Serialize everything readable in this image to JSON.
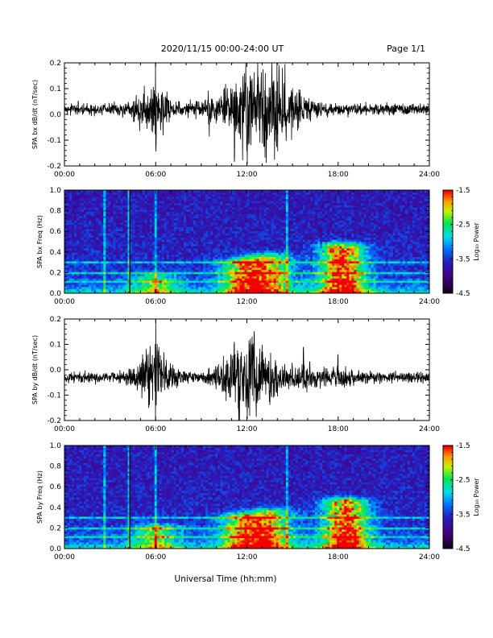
{
  "header": {
    "date_range": "2020/11/15  00:00-24:00 UT",
    "page": "Page 1/1"
  },
  "xaxis": {
    "title": "Universal Time (hh:mm)",
    "tick_labels": [
      "00:00",
      "06:00",
      "12:00",
      "18:00",
      "24:00"
    ]
  },
  "chart_data": [
    {
      "type": "line",
      "ylabel": "SPA bx dB/dt (nT/sec)",
      "xlim": [
        0,
        24
      ],
      "ylim": [
        -0.2,
        0.2
      ],
      "ytick_labels": [
        "-0.2",
        "-0.1",
        "0.0",
        "0.1",
        "0.2"
      ],
      "baseline": 0.02,
      "noise_amplitude": 0.02,
      "events": [
        {
          "time": 5.5,
          "amp": 0.05
        },
        {
          "time": 6.0,
          "amp": 0.17
        },
        {
          "time": 9.5,
          "amp": 0.05
        },
        {
          "time": 11.2,
          "amp": 0.09
        },
        {
          "time": 11.7,
          "amp": 0.17
        },
        {
          "time": 12.7,
          "amp": 0.2
        },
        {
          "time": 13.5,
          "amp": 0.12
        },
        {
          "time": 14.0,
          "amp": 0.14
        },
        {
          "time": 14.5,
          "amp": 0.09
        },
        {
          "time": 15.5,
          "amp": 0.06
        }
      ]
    },
    {
      "type": "heatmap",
      "ylabel": "SPA bx Freq (Hz)",
      "xlim": [
        0,
        24
      ],
      "ylim": [
        0,
        1.0
      ],
      "ytick_labels": [
        "0.0",
        "0.2",
        "0.4",
        "0.6",
        "0.8",
        "1.0"
      ],
      "colorbar": {
        "label": "Log₁₀ Power",
        "range": [
          -4.5,
          -1.5
        ],
        "tick_labels": [
          "-1.5",
          "-2.5",
          "-3.5",
          "-4.5"
        ]
      },
      "bands_hz": [
        0.3,
        0.2,
        0.12
      ],
      "lines_time": [
        2.7,
        4.3,
        6.0,
        14.6
      ],
      "activity": [
        {
          "time": 6.0,
          "freq_max": 0.15,
          "level": 0.35
        },
        {
          "time": 11.8,
          "freq_max": 0.3,
          "level": 0.55
        },
        {
          "time": 13.5,
          "freq_max": 0.35,
          "level": 0.5
        },
        {
          "time": 18.3,
          "freq_max": 0.45,
          "level": 0.75
        }
      ]
    },
    {
      "type": "line",
      "ylabel": "SPA by dB/dt (nT/sec)",
      "xlim": [
        0,
        24
      ],
      "ylim": [
        -0.2,
        0.2
      ],
      "ytick_labels": [
        "-0.2",
        "-0.1",
        "0.0",
        "0.1",
        "0.2"
      ],
      "baseline": -0.03,
      "noise_amplitude": 0.02,
      "events": [
        {
          "time": 5.6,
          "amp": 0.06
        },
        {
          "time": 6.0,
          "amp": 0.2
        },
        {
          "time": 10.9,
          "amp": 0.1
        },
        {
          "time": 11.5,
          "amp": 0.14
        },
        {
          "time": 12.5,
          "amp": 0.2
        },
        {
          "time": 13.5,
          "amp": 0.1
        },
        {
          "time": 15.7,
          "amp": 0.07
        },
        {
          "time": 18.0,
          "amp": 0.05
        }
      ]
    },
    {
      "type": "heatmap",
      "ylabel": "SPA by Freq (Hz)",
      "xlim": [
        0,
        24
      ],
      "ylim": [
        0,
        1.0
      ],
      "ytick_labels": [
        "0.0",
        "0.2",
        "0.4",
        "0.6",
        "0.8",
        "1.0"
      ],
      "colorbar": {
        "label": "Log₁₀ Power",
        "range": [
          -4.5,
          -1.5
        ],
        "tick_labels": [
          "-1.5",
          "-2.5",
          "-3.5",
          "-4.5"
        ]
      },
      "bands_hz": [
        0.3,
        0.2,
        0.12
      ],
      "lines_time": [
        2.7,
        4.3,
        6.0,
        14.6
      ],
      "activity": [
        {
          "time": 6.0,
          "freq_max": 0.2,
          "level": 0.4
        },
        {
          "time": 11.8,
          "freq_max": 0.3,
          "level": 0.55
        },
        {
          "time": 13.5,
          "freq_max": 0.35,
          "level": 0.5
        },
        {
          "time": 18.5,
          "freq_max": 0.45,
          "level": 0.75
        }
      ]
    }
  ]
}
